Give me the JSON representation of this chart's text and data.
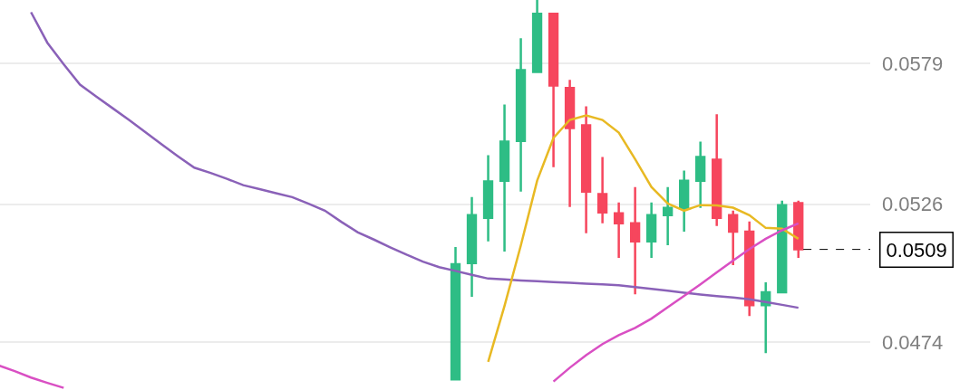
{
  "chart_data": {
    "type": "candlestick",
    "categories": [
      null,
      null,
      null,
      null,
      null,
      null,
      null,
      null,
      null,
      null,
      null,
      null,
      null,
      null,
      null,
      null,
      null,
      null,
      null,
      null,
      null,
      null,
      null,
      null,
      null,
      null,
      null,
      null,
      null,
      null,
      null,
      null,
      null,
      null,
      null,
      null,
      null,
      null,
      null,
      null,
      null,
      null,
      null,
      null,
      null,
      null,
      null,
      null,
      null,
      null
    ],
    "ohlc": [
      null,
      null,
      null,
      null,
      null,
      null,
      null,
      null,
      null,
      null,
      null,
      null,
      null,
      null,
      null,
      null,
      null,
      null,
      null,
      null,
      null,
      null,
      null,
      null,
      null,
      null,
      null,
      null,
      [
        0.046,
        0.05099,
        0.046,
        0.05034
      ],
      [
        0.05038,
        0.05287,
        0.04911,
        0.05219
      ],
      [
        0.05209,
        0.05445,
        0.0512,
        0.05346
      ],
      [
        0.05349,
        0.05636,
        0.05082,
        0.05496
      ],
      [
        0.05499,
        0.05886,
        0.05308,
        0.05766
      ],
      [
        0.05759,
        0.0603,
        0.05759,
        0.05978
      ],
      [
        0.05978,
        0.05978,
        0.054,
        0.05708
      ],
      [
        0.05698,
        0.05729,
        0.0525,
        0.05547
      ],
      [
        0.05558,
        0.05629,
        0.05151,
        0.05308
      ],
      [
        0.05298,
        0.05438,
        0.05188,
        0.05229
      ],
      [
        0.05226,
        0.05267,
        0.05058,
        0.05188
      ],
      [
        0.05188,
        0.05325,
        0.04921,
        0.0512
      ],
      [
        0.0512,
        0.05267,
        0.05058,
        0.05219
      ],
      [
        0.05219,
        0.05325,
        0.05106,
        0.05246
      ],
      [
        0.05246,
        0.05387,
        0.05157,
        0.05349
      ],
      [
        0.05349,
        0.05496,
        0.05246,
        0.05438
      ],
      [
        0.05428,
        0.05599,
        0.05178,
        0.05209
      ],
      [
        0.05219,
        0.05236,
        0.05031,
        0.05157
      ],
      [
        0.05157,
        0.05195,
        0.04839,
        0.0488
      ],
      [
        0.0488,
        0.04966,
        0.04699,
        0.04928
      ],
      [
        0.04928,
        0.05274,
        0.04928,
        0.05257
      ],
      [
        0.05264,
        0.05274,
        0.05058,
        0.0509
      ]
    ],
    "colors": [
      null,
      null,
      null,
      null,
      null,
      null,
      null,
      null,
      null,
      null,
      null,
      null,
      null,
      null,
      null,
      null,
      null,
      null,
      null,
      null,
      null,
      null,
      null,
      null,
      null,
      null,
      null,
      null,
      "#2ebd85",
      "#2ebd85",
      "#2ebd85",
      "#2ebd85",
      "#2ebd85",
      "#2ebd85",
      "#f6465d",
      "#f6465d",
      "#f6465d",
      "#f6465d",
      "#f6465d",
      "#f6465d",
      "#2ebd85",
      "#2ebd85",
      "#2ebd85",
      "#2ebd85",
      "#f6465d",
      "#f6465d",
      "#f6465d",
      "#2ebd85",
      "#2ebd85",
      "#f6465d"
    ],
    "series": [
      {
        "type": "line",
        "color": "#8a61b8",
        "values": [
          null,
          null,
          0.05984,
          0.05869,
          0.05788,
          0.05711,
          0.05666,
          0.05622,
          0.05578,
          0.05532,
          0.05486,
          0.05441,
          0.05398,
          0.05378,
          0.05356,
          0.05332,
          0.05317,
          0.05302,
          0.05287,
          0.05262,
          0.05236,
          0.05194,
          0.05155,
          0.05127,
          0.05098,
          0.0507,
          0.05044,
          0.05023,
          0.05009,
          0.04994,
          0.0498,
          0.04977,
          0.04973,
          0.0497,
          0.04967,
          0.04964,
          0.04961,
          0.04958,
          0.04955,
          0.04948,
          0.04941,
          0.04934,
          0.04927,
          0.0492,
          0.04914,
          0.04909,
          0.04902,
          0.04892,
          0.04881,
          0.0487
        ]
      },
      {
        "type": "line",
        "color": "#e8b923",
        "values": [
          null,
          null,
          null,
          null,
          null,
          null,
          null,
          null,
          null,
          null,
          null,
          null,
          null,
          null,
          null,
          null,
          null,
          null,
          null,
          null,
          null,
          null,
          null,
          null,
          null,
          null,
          null,
          null,
          null,
          null,
          0.04666,
          0.04877,
          0.05105,
          0.05349,
          0.0551,
          0.05578,
          0.05595,
          0.05578,
          0.0553,
          0.0543,
          0.05325,
          0.05263,
          0.05236,
          0.05257,
          0.05256,
          0.05247,
          0.05219,
          0.05171,
          0.05168,
          0.0513
        ]
      },
      {
        "type": "line",
        "color": "#d94fc3",
        "values": [
          0.04653,
          0.04631,
          0.04607,
          0.04587,
          0.04568,
          null,
          null,
          null,
          null,
          null,
          null,
          null,
          null,
          null,
          null,
          null,
          null,
          null,
          null,
          null,
          null,
          null,
          null,
          null,
          null,
          null,
          null,
          null,
          null,
          null,
          null,
          null,
          null,
          null,
          0.04592,
          0.04644,
          0.04691,
          0.04733,
          0.04767,
          0.04794,
          0.04829,
          0.04872,
          0.04915,
          0.04958,
          0.05003,
          0.05048,
          0.05091,
          0.0513,
          0.05162,
          0.05188
        ]
      }
    ],
    "ylim": [
      0.0456,
      0.0603
    ],
    "yticks": [
      0.0474,
      0.0526,
      0.0579
    ],
    "tick_labels": "y",
    "grid": "y",
    "ref_lines": [
      {
        "axis": "y",
        "value": 0.0509,
        "label": "0.0509",
        "color": "#000000",
        "line_style": "dashed"
      }
    ]
  }
}
